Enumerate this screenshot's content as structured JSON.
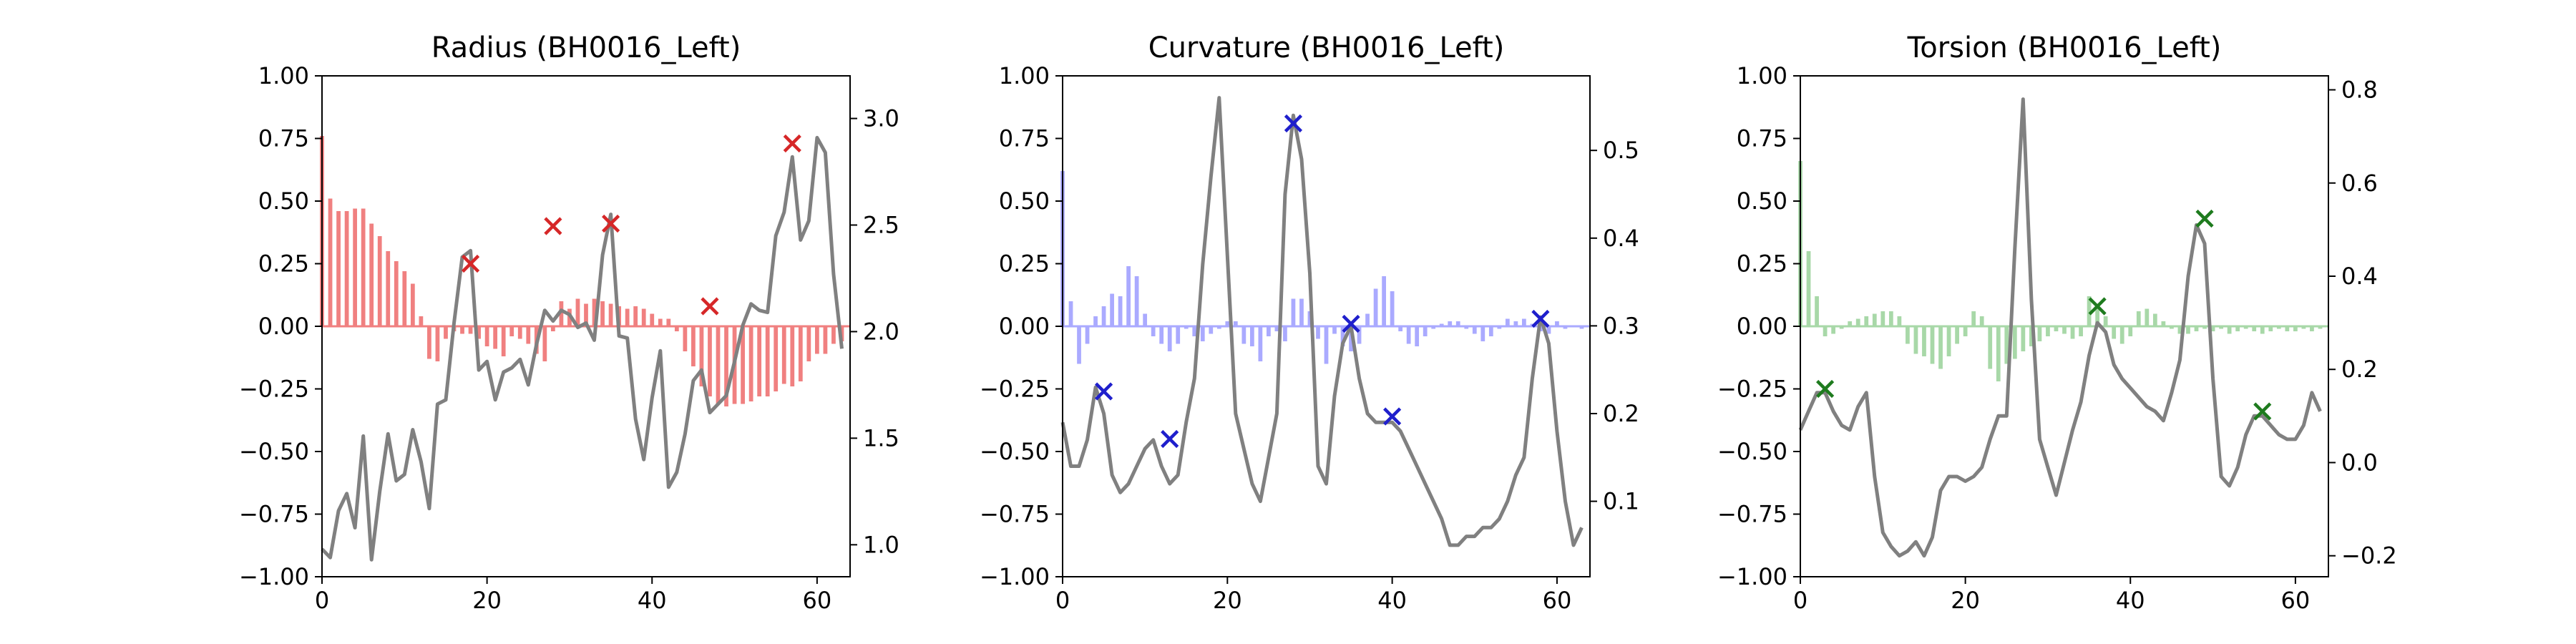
{
  "chart_data": [
    {
      "type": "bar+line",
      "title": "Radius (BH0016_Left)",
      "xlabel": "",
      "ylabel": "",
      "xlim": [
        0,
        64
      ],
      "ylim_left": [
        -1.0,
        1.0
      ],
      "ylim_right": [
        0.85,
        3.2
      ],
      "x_ticks": [
        "0",
        "20",
        "40",
        "60"
      ],
      "y_ticks_left": [
        "1.00",
        "0.75",
        "0.50",
        "0.25",
        "0.00",
        "−0.25",
        "−0.50",
        "−0.75",
        "−1.00"
      ],
      "y_ticks_right": [
        "3.0",
        "2.5",
        "2.0",
        "1.5",
        "1.0"
      ],
      "bar_color": "#f08080",
      "line_color": "#808080",
      "marker_color": "#d62728",
      "bars": {
        "axis": "left",
        "values": [
          0.76,
          0.51,
          0.46,
          0.46,
          0.47,
          0.47,
          0.41,
          0.36,
          0.3,
          0.26,
          0.22,
          0.17,
          0.04,
          -0.13,
          -0.14,
          -0.05,
          -0.02,
          -0.03,
          -0.03,
          -0.05,
          -0.08,
          -0.09,
          -0.12,
          -0.04,
          -0.05,
          -0.07,
          -0.11,
          -0.14,
          -0.02,
          0.1,
          0.07,
          0.11,
          0.09,
          0.11,
          0.1,
          0.09,
          0.08,
          0.07,
          0.08,
          0.07,
          0.05,
          0.03,
          0.03,
          -0.02,
          -0.1,
          -0.16,
          -0.24,
          -0.28,
          -0.31,
          -0.32,
          -0.31,
          -0.31,
          -0.3,
          -0.28,
          -0.28,
          -0.26,
          -0.23,
          -0.24,
          -0.22,
          -0.14,
          -0.11,
          -0.11,
          -0.07,
          -0.06
        ]
      },
      "line": {
        "axis": "right",
        "values": [
          0.98,
          0.94,
          1.16,
          1.24,
          1.08,
          1.51,
          0.93,
          1.25,
          1.52,
          1.3,
          1.33,
          1.54,
          1.39,
          1.17,
          1.66,
          1.68,
          2.04,
          2.35,
          2.38,
          1.82,
          1.86,
          1.68,
          1.81,
          1.83,
          1.87,
          1.75,
          1.94,
          2.1,
          2.05,
          2.1,
          2.08,
          2.02,
          2.04,
          1.96,
          2.36,
          2.55,
          1.98,
          1.97,
          1.59,
          1.4,
          1.69,
          1.91,
          1.27,
          1.34,
          1.52,
          1.77,
          1.82,
          1.62,
          1.66,
          1.7,
          1.86,
          2.03,
          2.13,
          2.1,
          2.09,
          2.45,
          2.56,
          2.82,
          2.43,
          2.52,
          2.91,
          2.84,
          2.27,
          1.92
        ]
      },
      "markers": {
        "axis": "left",
        "x": [
          18,
          28,
          35,
          47,
          57
        ],
        "y": [
          0.25,
          0.4,
          0.41,
          0.08,
          0.73
        ]
      }
    },
    {
      "type": "bar+line",
      "title": "Curvature (BH0016_Left)",
      "xlabel": "",
      "ylabel": "",
      "xlim": [
        0,
        64
      ],
      "ylim_left": [
        -1.0,
        1.0
      ],
      "ylim_right": [
        0.014,
        0.585
      ],
      "x_ticks": [
        "0",
        "20",
        "40",
        "60"
      ],
      "y_ticks_left": [
        "1.00",
        "0.75",
        "0.50",
        "0.25",
        "0.00",
        "−0.25",
        "−0.50",
        "−0.75",
        "−1.00"
      ],
      "y_ticks_right": [
        "0.5",
        "0.4",
        "0.3",
        "0.2",
        "0.1"
      ],
      "bar_color": "#aaaaff",
      "line_color": "#808080",
      "marker_color": "#1f1fcc",
      "bars": {
        "axis": "left",
        "values": [
          0.62,
          0.1,
          -0.15,
          -0.07,
          0.04,
          0.08,
          0.13,
          0.12,
          0.24,
          0.2,
          0.05,
          -0.04,
          -0.07,
          -0.1,
          -0.07,
          -0.01,
          -0.04,
          -0.06,
          -0.03,
          -0.01,
          0.02,
          0.02,
          -0.07,
          -0.08,
          -0.14,
          -0.04,
          -0.02,
          -0.06,
          0.11,
          0.11,
          0.06,
          -0.05,
          -0.15,
          -0.03,
          -0.08,
          -0.1,
          -0.07,
          0.05,
          0.15,
          0.2,
          0.14,
          -0.02,
          -0.07,
          -0.08,
          -0.04,
          -0.01,
          0.01,
          0.02,
          0.02,
          -0.01,
          -0.03,
          -0.06,
          -0.04,
          -0.01,
          0.03,
          0.02,
          0.03,
          0.01,
          -0.02,
          -0.03,
          0.02,
          -0.01,
          0.0,
          -0.01
        ]
      },
      "line": {
        "axis": "right",
        "values": [
          0.19,
          0.14,
          0.14,
          0.17,
          0.23,
          0.2,
          0.13,
          0.11,
          0.12,
          0.14,
          0.16,
          0.17,
          0.14,
          0.12,
          0.13,
          0.19,
          0.24,
          0.37,
          0.47,
          0.56,
          0.38,
          0.2,
          0.16,
          0.12,
          0.1,
          0.15,
          0.2,
          0.45,
          0.54,
          0.49,
          0.36,
          0.14,
          0.12,
          0.22,
          0.28,
          0.3,
          0.24,
          0.2,
          0.19,
          0.19,
          0.19,
          0.18,
          0.16,
          0.14,
          0.12,
          0.1,
          0.08,
          0.05,
          0.05,
          0.06,
          0.06,
          0.07,
          0.07,
          0.08,
          0.1,
          0.13,
          0.15,
          0.24,
          0.31,
          0.28,
          0.18,
          0.1,
          0.05,
          0.07
        ]
      },
      "markers": {
        "axis": "left",
        "x": [
          5,
          13,
          28,
          35,
          40,
          58
        ],
        "y": [
          -0.26,
          -0.45,
          0.81,
          0.01,
          -0.36,
          0.03
        ]
      }
    },
    {
      "type": "bar+line",
      "title": "Torsion (BH0016_Left)",
      "xlabel": "",
      "ylabel": "",
      "xlim": [
        0,
        64
      ],
      "ylim_left": [
        -1.0,
        1.0
      ],
      "ylim_right": [
        -0.245,
        0.83
      ],
      "x_ticks": [
        "0",
        "20",
        "40",
        "60"
      ],
      "y_ticks_left": [
        "1.00",
        "0.75",
        "0.50",
        "0.25",
        "0.00",
        "−0.25",
        "−0.50",
        "−0.75",
        "−1.00"
      ],
      "y_ticks_right": [
        "0.8",
        "0.6",
        "0.4",
        "0.2",
        "0.0",
        "−0.2"
      ],
      "bar_color": "#a8d8a8",
      "line_color": "#808080",
      "marker_color": "#1e7b1e",
      "bars": {
        "axis": "left",
        "values": [
          0.66,
          0.3,
          0.12,
          -0.04,
          -0.03,
          -0.01,
          0.02,
          0.03,
          0.04,
          0.05,
          0.06,
          0.06,
          0.04,
          -0.07,
          -0.11,
          -0.12,
          -0.15,
          -0.17,
          -0.12,
          -0.07,
          -0.04,
          0.06,
          0.04,
          -0.17,
          -0.22,
          -0.15,
          -0.13,
          -0.1,
          -0.08,
          -0.06,
          -0.04,
          -0.02,
          -0.03,
          -0.05,
          -0.04,
          0.12,
          0.09,
          0.04,
          -0.05,
          -0.07,
          -0.04,
          0.06,
          0.07,
          0.05,
          0.02,
          -0.01,
          -0.03,
          -0.03,
          -0.02,
          -0.01,
          -0.02,
          -0.01,
          -0.03,
          -0.02,
          -0.01,
          -0.02,
          -0.03,
          -0.02,
          -0.01,
          -0.02,
          -0.02,
          -0.01,
          -0.02,
          -0.01
        ]
      },
      "line": {
        "axis": "right",
        "values": [
          0.07,
          0.11,
          0.15,
          0.15,
          0.11,
          0.08,
          0.07,
          0.12,
          0.15,
          -0.03,
          -0.15,
          -0.18,
          -0.2,
          -0.19,
          -0.17,
          -0.2,
          -0.16,
          -0.06,
          -0.03,
          -0.03,
          -0.04,
          -0.03,
          -0.01,
          0.05,
          0.1,
          0.1,
          0.46,
          0.78,
          0.35,
          0.05,
          -0.01,
          -0.07,
          0.0,
          0.07,
          0.13,
          0.23,
          0.3,
          0.28,
          0.21,
          0.18,
          0.16,
          0.14,
          0.12,
          0.11,
          0.09,
          0.15,
          0.22,
          0.4,
          0.51,
          0.47,
          0.18,
          -0.03,
          -0.05,
          -0.01,
          0.06,
          0.1,
          0.1,
          0.08,
          0.06,
          0.05,
          0.05,
          0.08,
          0.15,
          0.11
        ]
      },
      "markers": {
        "axis": "left",
        "x": [
          3,
          36,
          49,
          56
        ],
        "y": [
          -0.25,
          0.08,
          0.43,
          -0.34
        ]
      }
    }
  ]
}
